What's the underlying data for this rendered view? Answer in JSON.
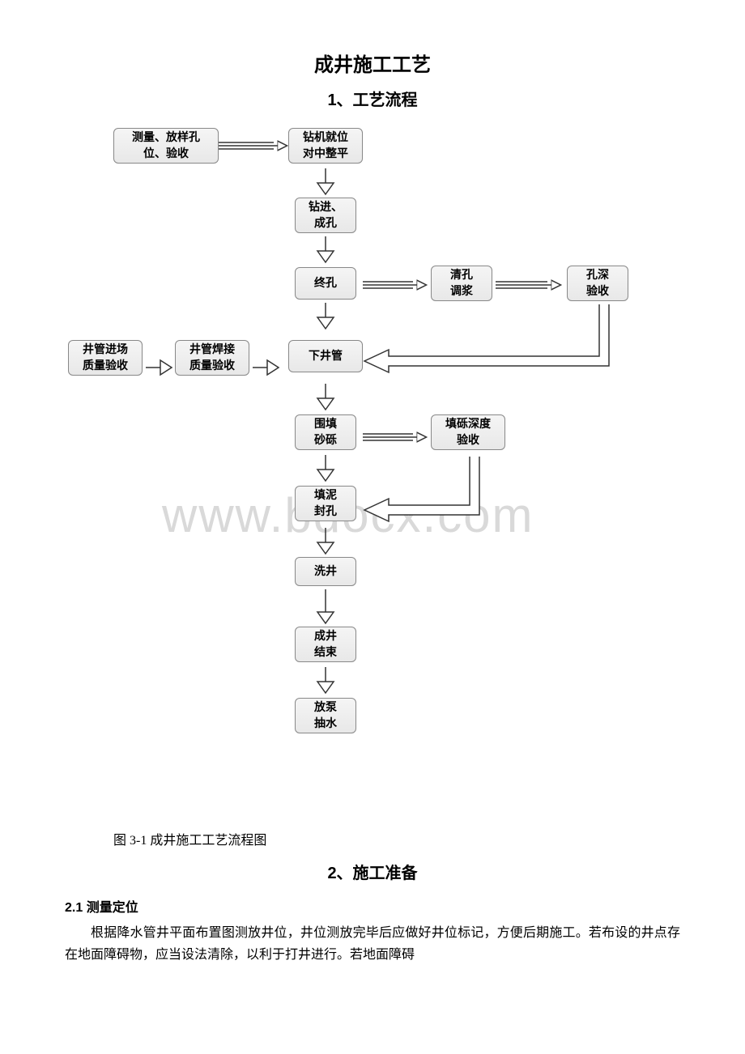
{
  "title": "成井施工工艺",
  "section1_heading": "1、工艺流程",
  "caption": "图 3-1 成井施工工艺流程图",
  "section2_heading": "2、施工准备",
  "sub21": "2.1 测量定位",
  "body1": "根据降水管井平面布置图测放井位，井位测放完毕后应做好井位标记，方便后期施工。若布设的井点存在地面障碍物，应当设法清除，以利于打井进行。若地面障碍",
  "watermark": "www.bdocx.com",
  "flow": {
    "nodes": {
      "n1": "测量、放样孔\n位、验收",
      "n2": "钻机就位\n对中整平",
      "n3": "钻进、\n成孔",
      "n4": "终孔",
      "n5": "清孔\n调浆",
      "n6": "孔深\n验收",
      "n7": "下井管",
      "n8": "井管焊接\n质量验收",
      "n9": "井管进场\n质量验收",
      "n10": "围填\n砂砾",
      "n11": "填砾深度\n验收",
      "n12": "填泥\n封孔",
      "n13": "洗井",
      "n14": "成井\n结束",
      "n15": "放泵\n抽水"
    },
    "colors": {
      "node_fill_top": "#f5f5f5",
      "node_fill_bot": "#e8e8e8",
      "node_border": "#888888",
      "arrow_stroke": "#333333",
      "watermark": "#d9d9d9"
    }
  }
}
